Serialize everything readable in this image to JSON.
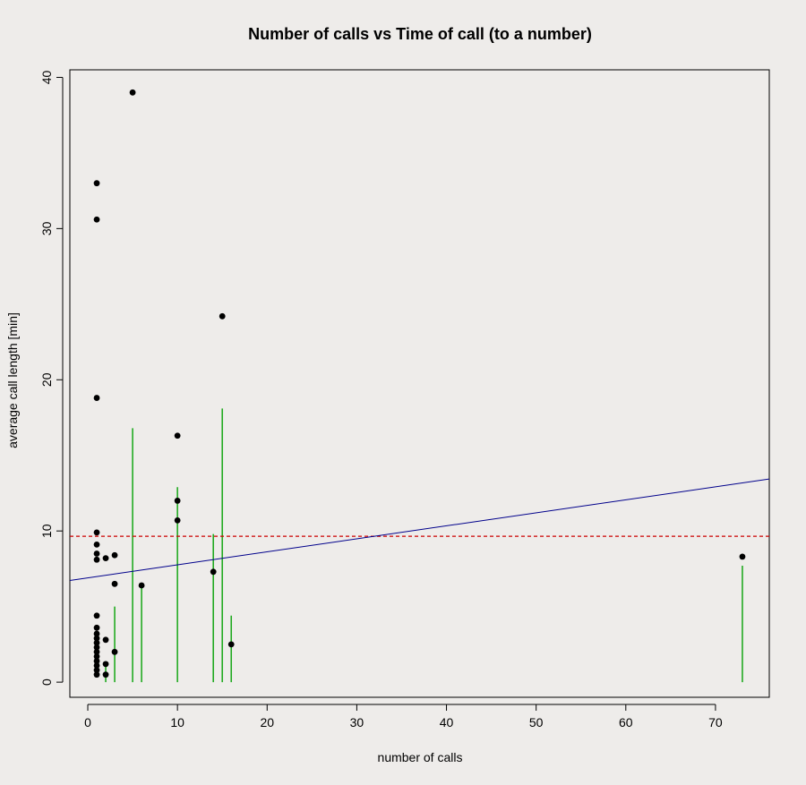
{
  "chart_data": {
    "type": "scatter",
    "title": "Number of calls vs Time of call (to a number)",
    "xlabel": "number of calls",
    "ylabel": "average call length [min]",
    "xlim": [
      -2,
      76
    ],
    "ylim": [
      -1,
      40.5
    ],
    "x_ticks": [
      "0",
      "10",
      "20",
      "30",
      "40",
      "50",
      "60",
      "70"
    ],
    "y_ticks": [
      "0",
      "10",
      "20",
      "30",
      "40"
    ],
    "points": [
      {
        "x": 1,
        "y": 33.0
      },
      {
        "x": 1,
        "y": 30.6
      },
      {
        "x": 1,
        "y": 18.8
      },
      {
        "x": 1,
        "y": 9.9
      },
      {
        "x": 1,
        "y": 9.1
      },
      {
        "x": 1,
        "y": 8.5
      },
      {
        "x": 1,
        "y": 8.1
      },
      {
        "x": 1,
        "y": 4.4
      },
      {
        "x": 1,
        "y": 3.6
      },
      {
        "x": 1,
        "y": 3.2
      },
      {
        "x": 1,
        "y": 2.9
      },
      {
        "x": 1,
        "y": 2.6
      },
      {
        "x": 1,
        "y": 2.3
      },
      {
        "x": 1,
        "y": 2.0
      },
      {
        "x": 1,
        "y": 1.7
      },
      {
        "x": 1,
        "y": 1.4
      },
      {
        "x": 1,
        "y": 1.1
      },
      {
        "x": 1,
        "y": 0.8
      },
      {
        "x": 1,
        "y": 0.5
      },
      {
        "x": 2,
        "y": 8.2
      },
      {
        "x": 2,
        "y": 2.8
      },
      {
        "x": 2,
        "y": 1.2
      },
      {
        "x": 2,
        "y": 0.5
      },
      {
        "x": 3,
        "y": 8.4
      },
      {
        "x": 3,
        "y": 6.5
      },
      {
        "x": 3,
        "y": 2.0
      },
      {
        "x": 5,
        "y": 39.0
      },
      {
        "x": 6,
        "y": 6.4
      },
      {
        "x": 10,
        "y": 16.3
      },
      {
        "x": 10,
        "y": 12.0
      },
      {
        "x": 10,
        "y": 10.7
      },
      {
        "x": 14,
        "y": 7.3
      },
      {
        "x": 15,
        "y": 24.2
      },
      {
        "x": 16,
        "y": 2.5
      },
      {
        "x": 73,
        "y": 8.3
      }
    ],
    "vertical_lines": [
      {
        "x": 2,
        "y": 1.3
      },
      {
        "x": 3,
        "y": 5.0
      },
      {
        "x": 5,
        "y": 16.8
      },
      {
        "x": 6,
        "y": 6.4
      },
      {
        "x": 10,
        "y": 12.9
      },
      {
        "x": 14,
        "y": 9.8
      },
      {
        "x": 15,
        "y": 18.1
      },
      {
        "x": 16,
        "y": 4.4
      },
      {
        "x": 73,
        "y": 7.7
      }
    ],
    "regression_line": {
      "intercept": 6.9,
      "slope": 0.086
    },
    "mean_line": {
      "y": 9.65
    },
    "grid": false,
    "colors": {
      "points": "#000000",
      "vertical_lines": "#22aa22",
      "regression": "#00008b",
      "mean": "#cc0000",
      "background": "#eeecea"
    }
  }
}
